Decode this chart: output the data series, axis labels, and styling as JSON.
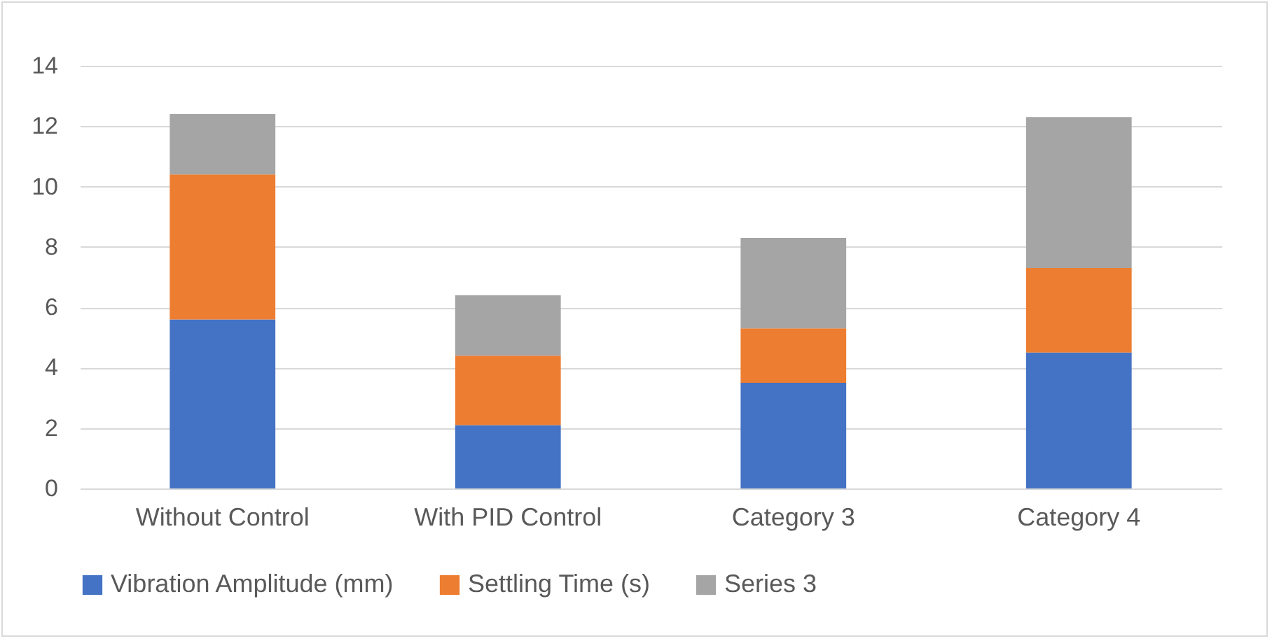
{
  "chart_data": {
    "type": "bar",
    "stacked": true,
    "categories": [
      "Without Control",
      "With PID Control",
      "Category 3",
      "Category 4"
    ],
    "series": [
      {
        "name": "Vibration Amplitude (mm)",
        "color": "#4472c4",
        "values": [
          5.6,
          2.1,
          3.5,
          4.5
        ]
      },
      {
        "name": "Settling Time (s)",
        "color": "#ed7d31",
        "values": [
          4.8,
          2.3,
          1.8,
          2.8
        ]
      },
      {
        "name": "Series 3",
        "color": "#a5a5a5",
        "values": [
          2,
          2,
          3,
          5
        ]
      }
    ],
    "ylim": [
      0,
      14
    ],
    "yticks": [
      0,
      2,
      4,
      6,
      8,
      10,
      12,
      14
    ],
    "grid": "y",
    "legend": "bottom"
  }
}
